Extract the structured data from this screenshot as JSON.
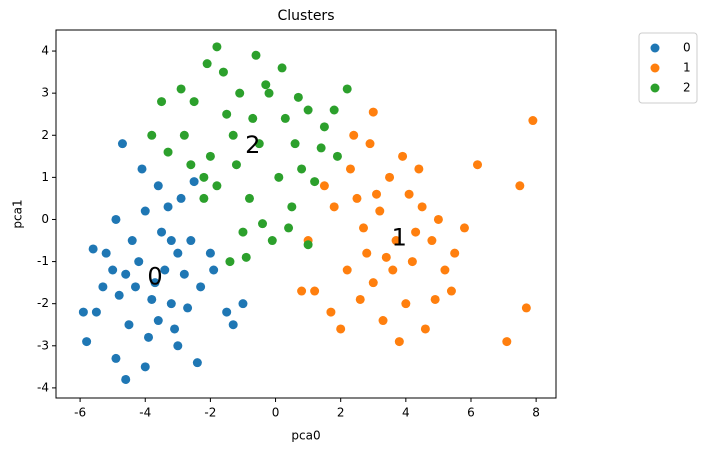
{
  "chart_data": {
    "type": "scatter",
    "title": "Clusters",
    "x_label": "pca0",
    "y_label": "pca1",
    "xlim": [
      -6.74,
      8.61
    ],
    "ylim": [
      -4.24,
      4.5
    ],
    "xticks": [
      -6,
      -4,
      -2,
      0,
      2,
      4,
      6,
      8
    ],
    "yticks": [
      -4,
      -3,
      -2,
      -1,
      0,
      1,
      2,
      3,
      4
    ],
    "legend_position": "upper right outside",
    "series": [
      {
        "name": "0",
        "color": "#1f77b4",
        "x": [
          -3.7,
          -4.2,
          -3.2,
          -4.8,
          -3.0,
          -4.5,
          -3.5,
          -2.8,
          -5.0,
          -3.9,
          -4.4,
          -3.3,
          -2.6,
          -5.5,
          -4.9,
          -4.0,
          -3.1,
          -2.3,
          -5.8,
          -5.2,
          -3.6,
          -4.1,
          -4.7,
          -2.4,
          -1.5,
          -1.3,
          -2.9,
          -2.0,
          -4.6,
          -5.9,
          -3.8,
          -4.3,
          -3.4,
          -2.7,
          -5.3,
          -4.0,
          -3.0,
          -1.9,
          -4.9,
          -2.5,
          -3.6,
          -4.6,
          -3.2,
          -5.6,
          -1.0
        ],
        "y": [
          -1.5,
          -1.0,
          -2.0,
          -1.8,
          -0.8,
          -2.5,
          -0.3,
          -1.3,
          -1.2,
          -2.8,
          -0.5,
          0.3,
          -0.5,
          -2.2,
          -3.3,
          -3.5,
          -2.6,
          -1.6,
          -2.9,
          -0.8,
          0.8,
          1.2,
          1.8,
          -3.4,
          -2.2,
          -2.5,
          0.5,
          -0.8,
          -3.8,
          -2.2,
          -1.9,
          -1.6,
          -1.2,
          -2.1,
          -1.6,
          0.2,
          -3.0,
          -1.2,
          0.0,
          0.9,
          -2.4,
          -1.3,
          -0.5,
          -0.7,
          -2.0
        ]
      },
      {
        "name": "1",
        "color": "#ff7f0e",
        "x": [
          3.7,
          3.2,
          4.2,
          2.8,
          4.5,
          3.5,
          2.5,
          4.8,
          5.2,
          3.0,
          4.0,
          2.2,
          1.8,
          3.9,
          2.9,
          2.4,
          4.6,
          5.5,
          3.3,
          2.0,
          1.2,
          1.5,
          4.4,
          5.0,
          3.6,
          2.7,
          4.1,
          3.4,
          1.0,
          5.4,
          3.8,
          2.3,
          4.9,
          1.7,
          3.1,
          4.3,
          2.6,
          3.0,
          7.9,
          7.5,
          6.2,
          7.7,
          7.1,
          0.8,
          5.8
        ],
        "y": [
          -0.5,
          0.2,
          -1.0,
          -0.8,
          0.3,
          1.0,
          0.5,
          -0.5,
          -1.2,
          -1.5,
          -2.0,
          -1.2,
          0.3,
          1.5,
          1.8,
          2.0,
          -2.6,
          -0.8,
          -2.4,
          -2.6,
          -1.7,
          0.8,
          1.2,
          0.0,
          -1.2,
          -0.2,
          0.6,
          -0.9,
          -0.5,
          -1.7,
          -2.9,
          1.2,
          -1.9,
          -2.2,
          0.6,
          -0.3,
          -1.9,
          2.55,
          2.35,
          0.8,
          1.3,
          -2.1,
          -2.9,
          -1.7,
          -0.2
        ]
      },
      {
        "name": "2",
        "color": "#2ca02c",
        "x": [
          -0.5,
          -1.2,
          0.3,
          -2.0,
          0.8,
          -0.2,
          -1.5,
          1.0,
          -2.8,
          -0.8,
          0.5,
          -1.8,
          -2.5,
          -1.6,
          -1.8,
          -0.6,
          -0.3,
          0.2,
          -3.5,
          -2.9,
          1.5,
          1.9,
          1.2,
          -0.1,
          -0.9,
          -1.0,
          1.0,
          -2.2,
          0.6,
          -1.3,
          -2.2,
          1.8,
          2.2,
          -0.7,
          0.1,
          -1.4,
          -2.6,
          -3.8,
          -3.3,
          -1.1,
          0.4,
          1.4,
          -2.1,
          0.7,
          -0.4
        ],
        "y": [
          1.8,
          1.3,
          2.4,
          1.5,
          1.2,
          3.0,
          2.5,
          2.6,
          2.0,
          0.5,
          0.3,
          0.8,
          2.8,
          3.5,
          4.1,
          3.9,
          3.2,
          3.6,
          2.8,
          3.1,
          2.2,
          1.5,
          0.9,
          -0.5,
          -0.9,
          -0.3,
          -0.6,
          0.5,
          1.8,
          2.0,
          1.0,
          2.6,
          3.1,
          2.4,
          1.0,
          -1.0,
          1.3,
          2.0,
          1.6,
          3.0,
          -0.2,
          1.7,
          3.7,
          2.9,
          -0.1
        ]
      }
    ]
  }
}
